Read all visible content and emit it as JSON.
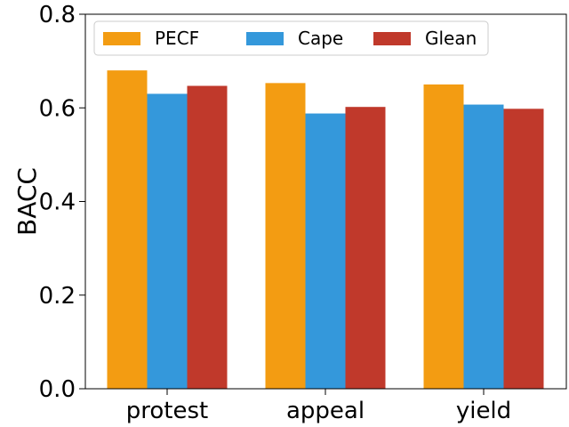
{
  "chart_data": {
    "type": "bar",
    "categories": [
      "protest",
      "appeal",
      "yield"
    ],
    "series": [
      {
        "name": "PECF",
        "values": [
          0.68,
          0.653,
          0.65
        ],
        "color": "#f39c12"
      },
      {
        "name": "Cape",
        "values": [
          0.63,
          0.588,
          0.607
        ],
        "color": "#3498db"
      },
      {
        "name": "Glean",
        "values": [
          0.647,
          0.602,
          0.598
        ],
        "color": "#c0392b"
      }
    ],
    "title": "",
    "xlabel": "",
    "ylabel": "BACC",
    "ylim": [
      0,
      0.8
    ],
    "yticks": [
      "0.0",
      "0.2",
      "0.4",
      "0.6",
      "0.8"
    ],
    "grid": false,
    "legend_placement": "top-left"
  }
}
